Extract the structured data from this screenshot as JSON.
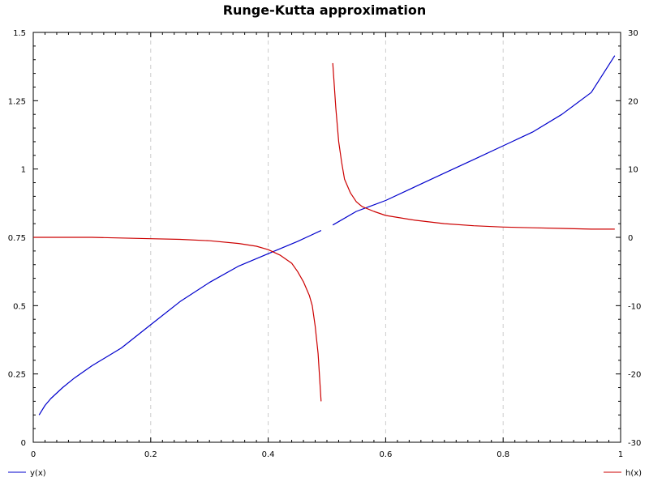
{
  "chart_data": {
    "type": "line",
    "title": "Runge-Kutta approximation",
    "xlabel": "",
    "ylabel": "",
    "xlim": [
      0,
      1
    ],
    "ylim_left": [
      0,
      1.5
    ],
    "ylim_right": [
      -30,
      30
    ],
    "x_ticks": [
      "0",
      "0.2",
      "0.4",
      "0.6",
      "0.8",
      "1"
    ],
    "y_left_ticks": [
      "0",
      "0.25",
      "0.5",
      "0.75",
      "1",
      "1.25",
      "1.5"
    ],
    "y_right_ticks": [
      "-30",
      "-20",
      "-10",
      "0",
      "10",
      "20",
      "30"
    ],
    "grid": "vertical dashed",
    "legend_placement": "bottom",
    "series": [
      {
        "name": "y(x)",
        "axis": "left",
        "color": "#0000cc",
        "segments": [
          [
            [
              0.01,
              0.1
            ],
            [
              0.02,
              0.135
            ],
            [
              0.03,
              0.16
            ],
            [
              0.05,
              0.2
            ],
            [
              0.07,
              0.235
            ],
            [
              0.1,
              0.28
            ],
            [
              0.15,
              0.345
            ],
            [
              0.2,
              0.43
            ],
            [
              0.25,
              0.515
            ],
            [
              0.3,
              0.585
            ],
            [
              0.35,
              0.645
            ],
            [
              0.4,
              0.69
            ],
            [
              0.45,
              0.735
            ],
            [
              0.49,
              0.775
            ]
          ],
          [
            [
              0.51,
              0.795
            ],
            [
              0.55,
              0.845
            ],
            [
              0.6,
              0.885
            ],
            [
              0.65,
              0.935
            ],
            [
              0.7,
              0.985
            ],
            [
              0.75,
              1.035
            ],
            [
              0.8,
              1.085
            ],
            [
              0.85,
              1.135
            ],
            [
              0.9,
              1.2
            ],
            [
              0.95,
              1.28
            ],
            [
              0.99,
              1.415
            ]
          ]
        ]
      },
      {
        "name": "h(x)",
        "axis": "right",
        "color": "#cc0000",
        "segments": [
          [
            [
              0.0,
              0.0
            ],
            [
              0.1,
              0.0
            ],
            [
              0.2,
              -0.2
            ],
            [
              0.25,
              -0.3
            ],
            [
              0.3,
              -0.5
            ],
            [
              0.35,
              -0.9
            ],
            [
              0.38,
              -1.3
            ],
            [
              0.4,
              -1.8
            ],
            [
              0.42,
              -2.6
            ],
            [
              0.44,
              -3.8
            ],
            [
              0.45,
              -5.0
            ],
            [
              0.46,
              -6.5
            ],
            [
              0.47,
              -8.5
            ],
            [
              0.475,
              -10.0
            ],
            [
              0.48,
              -13.0
            ],
            [
              0.485,
              -17.0
            ],
            [
              0.49,
              -24.0
            ]
          ],
          [
            [
              0.51,
              25.5
            ],
            [
              0.515,
              19.0
            ],
            [
              0.52,
              14.0
            ],
            [
              0.525,
              11.0
            ],
            [
              0.53,
              8.5
            ],
            [
              0.54,
              6.5
            ],
            [
              0.55,
              5.2
            ],
            [
              0.56,
              4.5
            ],
            [
              0.58,
              3.8
            ],
            [
              0.6,
              3.2
            ],
            [
              0.65,
              2.5
            ],
            [
              0.7,
              2.0
            ],
            [
              0.75,
              1.7
            ],
            [
              0.8,
              1.5
            ],
            [
              0.85,
              1.4
            ],
            [
              0.9,
              1.3
            ],
            [
              0.95,
              1.2
            ],
            [
              0.99,
              1.2
            ]
          ]
        ]
      }
    ]
  }
}
